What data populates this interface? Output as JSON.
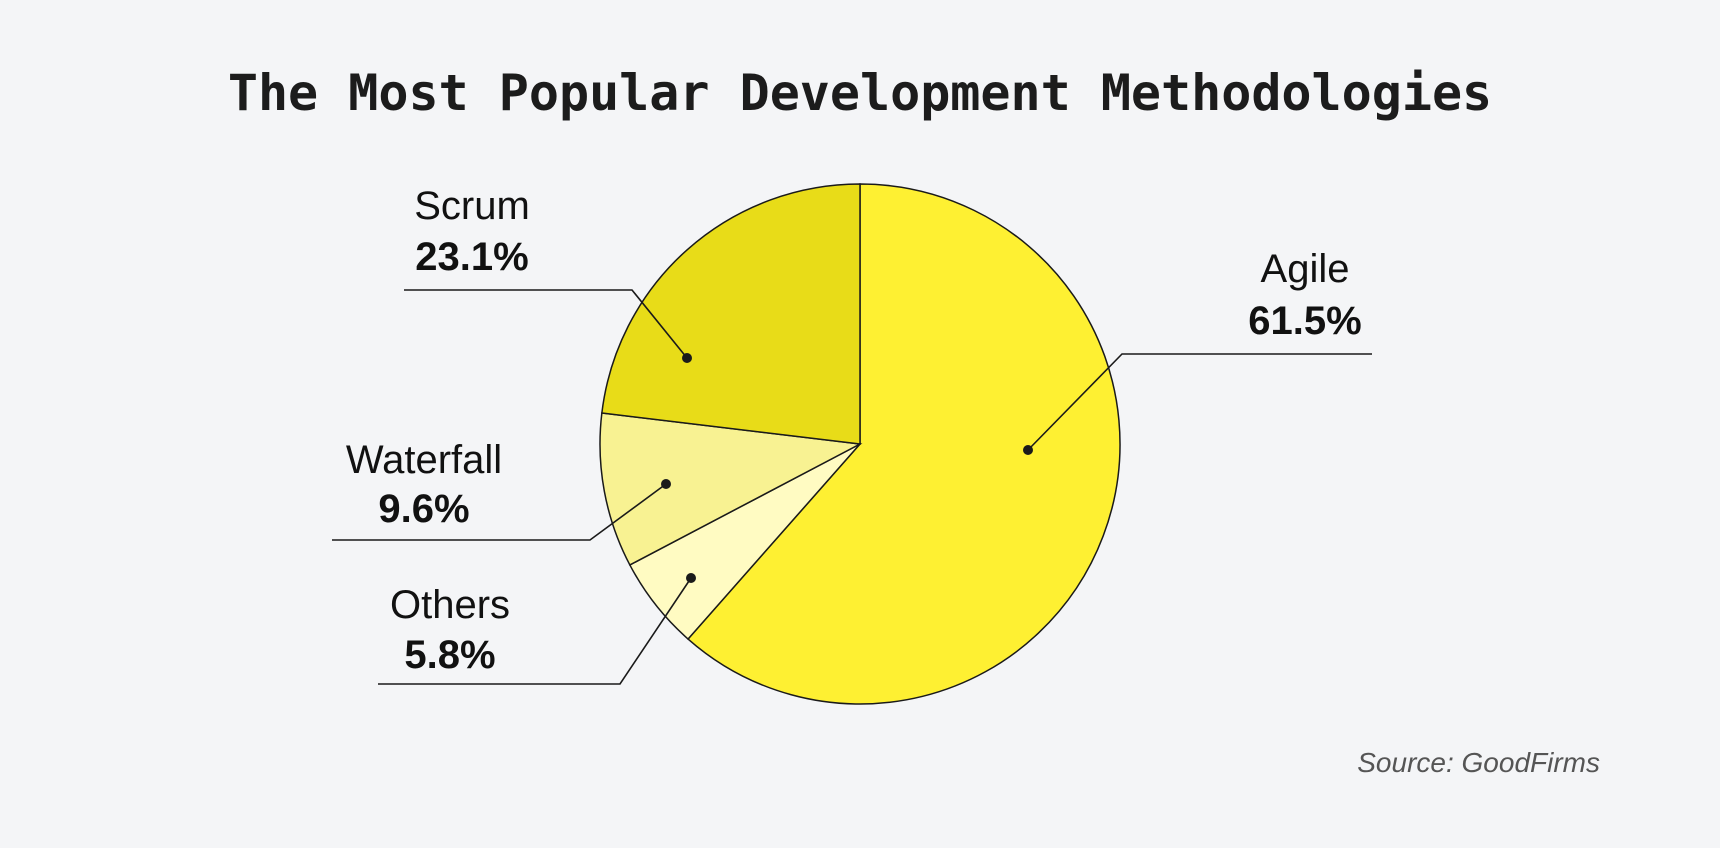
{
  "chart_data": {
    "type": "pie",
    "title": "The Most Popular Development Methodologies",
    "source": "Source: GoodFirms",
    "slices": [
      {
        "label": "Agile",
        "value": 61.5,
        "value_label": "61.5%",
        "color": "#fef032"
      },
      {
        "label": "Others",
        "value": 5.8,
        "value_label": "5.8%",
        "color": "#fffbc2"
      },
      {
        "label": "Waterfall",
        "value": 9.6,
        "value_label": "9.6%",
        "color": "#f8f292"
      },
      {
        "label": "Scrum",
        "value": 23.1,
        "value_label": "23.1%",
        "color": "#e8dc18"
      }
    ]
  }
}
